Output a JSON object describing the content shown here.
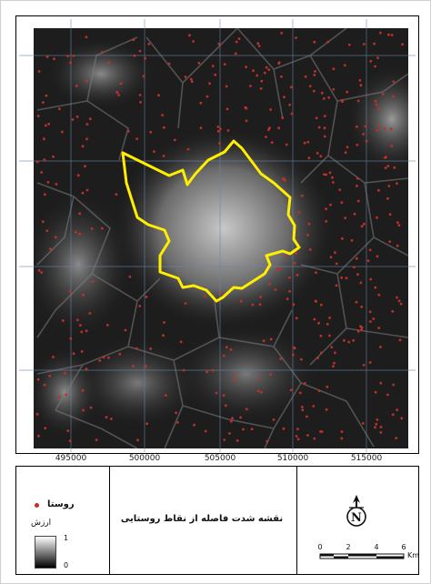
{
  "map": {
    "x_axis_labels": [
      "495000",
      "500000",
      "505000",
      "510000",
      "515000"
    ],
    "colors": {
      "background_dark": "#1a1a1a",
      "surface_light": "#bdbdbd",
      "boundary": "#ffee00",
      "village_point": "#c0302a",
      "grid": "#6a86a8"
    }
  },
  "legend": {
    "village_label": "روستا",
    "value_label": "ارزش",
    "gradient_high": "1",
    "gradient_low": "0",
    "title": "نقشه شدت فاصله از نقاط روستایی",
    "north_symbol": "N",
    "scale_ticks": [
      "0",
      "2",
      "4",
      "6"
    ],
    "scale_unit": "Km"
  }
}
